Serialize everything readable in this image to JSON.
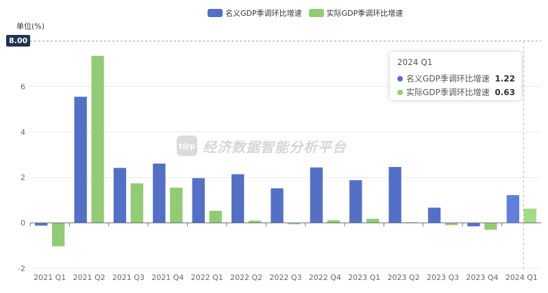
{
  "chart_data": {
    "type": "bar",
    "ylabel": "单位(%)",
    "ylim": [
      -2,
      8
    ],
    "yticks": [
      -2,
      0,
      2,
      4,
      6
    ],
    "ymax_label": "8.00",
    "grid": true,
    "legend": "top-center",
    "categories": [
      "2021 Q1",
      "2021 Q2",
      "2021 Q3",
      "2021 Q4",
      "2022 Q1",
      "2022 Q2",
      "2022 Q3",
      "2022 Q4",
      "2023 Q1",
      "2023 Q2",
      "2023 Q3",
      "2023 Q4",
      "2024 Q1"
    ],
    "series": [
      {
        "name": "名义GDP季调环比增速",
        "color": "#5470c6",
        "values": [
          -0.12,
          5.55,
          2.42,
          2.61,
          1.97,
          2.14,
          1.52,
          2.44,
          1.88,
          2.46,
          0.67,
          -0.15,
          1.22
        ]
      },
      {
        "name": "实际GDP季调环比增速",
        "color": "#91cc75",
        "values": [
          -1.03,
          7.35,
          1.74,
          1.55,
          0.53,
          0.1,
          -0.06,
          0.12,
          0.18,
          0.03,
          -0.1,
          -0.3,
          0.63
        ]
      }
    ]
  },
  "tooltip": {
    "title": "2024 Q1",
    "rows": [
      {
        "name": "名义GDP季调环比增速",
        "value": "1.22"
      },
      {
        "name": "实际GDP季调环比增速",
        "value": "0.63"
      }
    ]
  },
  "watermark": {
    "logo": "t@p",
    "text": "经济数据智能分析平台"
  }
}
